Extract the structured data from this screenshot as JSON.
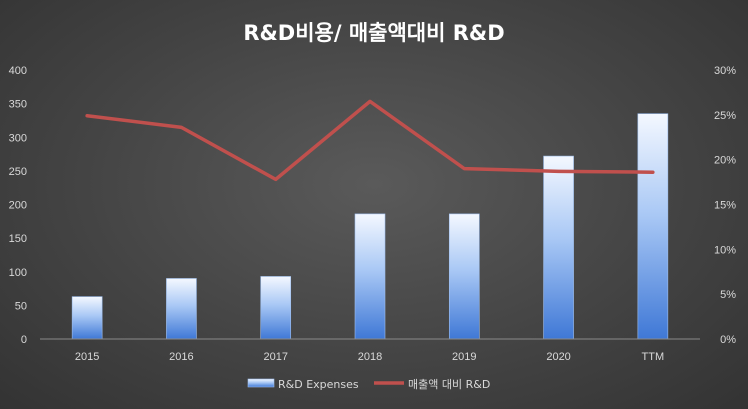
{
  "chart_data": {
    "type": "bar",
    "title": "R&D비용/ 매출액대비 R&D",
    "categories": [
      "2015",
      "2016",
      "2017",
      "2018",
      "2019",
      "2020",
      "TTM"
    ],
    "series": [
      {
        "name": "R&D Expenses",
        "type": "bar",
        "axis": "left",
        "values": [
          63,
          90,
          93,
          186,
          186,
          272,
          335
        ]
      },
      {
        "name": "매출액 대비 R&D",
        "type": "line",
        "axis": "right",
        "values": [
          0.249,
          0.236,
          0.178,
          0.265,
          0.19,
          0.187,
          0.186
        ]
      }
    ],
    "ylim": [
      0,
      400
    ],
    "yticks": [
      "0",
      "50",
      "100",
      "150",
      "200",
      "250",
      "300",
      "350",
      "400"
    ],
    "y2lim": [
      0,
      0.3
    ],
    "y2ticks": [
      "0%",
      "5%",
      "10%",
      "15%",
      "20%",
      "25%",
      "30%"
    ],
    "grid": false,
    "legend": "bottom",
    "colors": {
      "bar_light": "#e6f0ff",
      "bar_dark": "#3c78d8",
      "line": "#c0504d",
      "text": "#d9d9d9"
    }
  }
}
